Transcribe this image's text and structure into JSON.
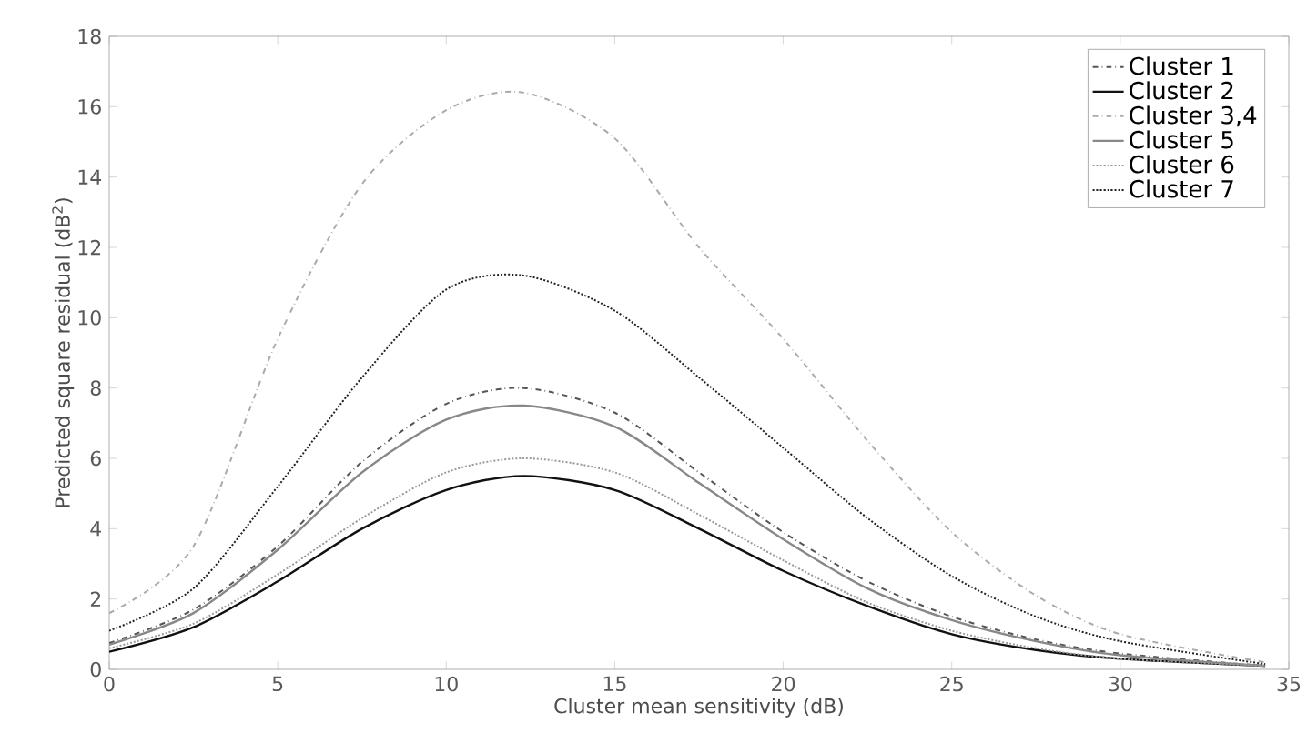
{
  "chart_data": {
    "type": "line",
    "xlabel": "Cluster mean sensitivity (dB)",
    "ylabel": "Predicted square residual (dB$^{2}$)",
    "xlim": [
      0,
      35
    ],
    "ylim": [
      0,
      18
    ],
    "xticks": [
      0,
      5,
      10,
      15,
      20,
      25,
      30,
      35
    ],
    "yticks": [
      0,
      2,
      4,
      6,
      8,
      10,
      12,
      14,
      16,
      18
    ],
    "x": [
      0,
      2.5,
      5,
      7.5,
      10,
      12.3,
      15,
      17.5,
      20,
      22.5,
      25,
      27.5,
      30,
      34.3
    ],
    "legend": "top right",
    "grid": false,
    "marker": "none",
    "series": [
      {
        "name": "Cluster 1",
        "color": "#555555",
        "line_style": "dashed",
        "values": [
          0.75,
          1.7,
          3.5,
          5.9,
          7.55,
          8.0,
          7.3,
          5.6,
          3.9,
          2.5,
          1.5,
          0.85,
          0.45,
          0.1
        ]
      },
      {
        "name": "Cluster 2",
        "color": "#111111",
        "line_style": "solid",
        "values": [
          0.5,
          1.2,
          2.5,
          4.0,
          5.1,
          5.5,
          5.1,
          4.0,
          2.8,
          1.8,
          1.0,
          0.55,
          0.3,
          0.1
        ]
      },
      {
        "name": "Cluster 3,4",
        "color": "#aaaaaa",
        "line_style": "dashed",
        "values": [
          1.6,
          3.5,
          9.4,
          13.8,
          15.9,
          16.4,
          15.1,
          12.0,
          9.4,
          6.5,
          3.9,
          2.1,
          1.0,
          0.2
        ]
      },
      {
        "name": "Cluster 5",
        "color": "#888888",
        "line_style": "solid",
        "values": [
          0.7,
          1.6,
          3.4,
          5.6,
          7.1,
          7.5,
          6.9,
          5.3,
          3.7,
          2.3,
          1.4,
          0.8,
          0.4,
          0.1
        ]
      },
      {
        "name": "Cluster 6",
        "color": "#999999",
        "line_style": "dotted",
        "values": [
          0.6,
          1.3,
          2.7,
          4.3,
          5.6,
          6.0,
          5.6,
          4.4,
          3.1,
          1.9,
          1.1,
          0.6,
          0.3,
          0.1
        ]
      },
      {
        "name": "Cluster 7",
        "color": "#222222",
        "line_style": "dotted",
        "values": [
          1.1,
          2.3,
          5.2,
          8.3,
          10.8,
          11.2,
          10.2,
          8.3,
          6.3,
          4.3,
          2.65,
          1.5,
          0.8,
          0.15
        ]
      }
    ]
  }
}
